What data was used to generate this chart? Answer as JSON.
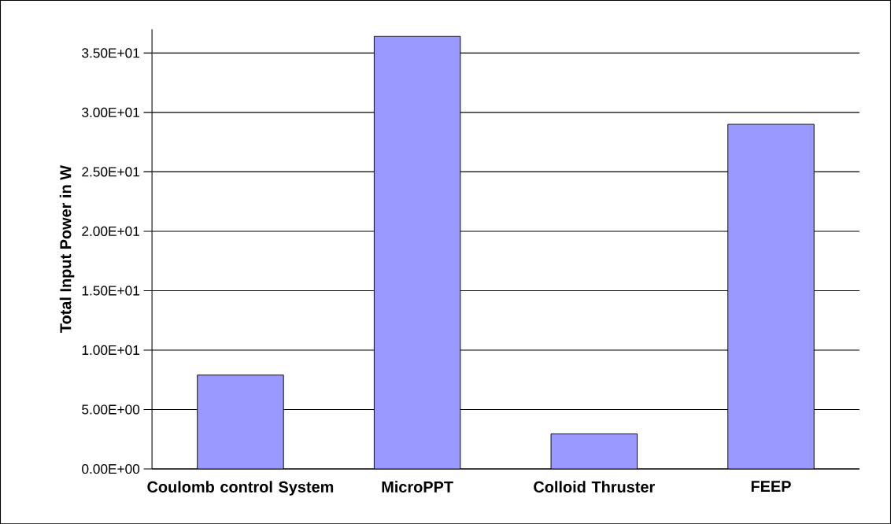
{
  "chart_data": {
    "type": "bar",
    "ylabel": "Total Input Power in W",
    "categories": [
      "Coulomb control System",
      "MicroPPT",
      "Colloid Thruster",
      "FEEP"
    ],
    "values": [
      7.9,
      36.4,
      2.95,
      29.0
    ],
    "color": "#9999ff",
    "ylim": [
      0,
      37
    ],
    "yticks": [
      {
        "value": 0,
        "label": "0.00E+00"
      },
      {
        "value": 5,
        "label": "5.00E+00"
      },
      {
        "value": 10,
        "label": "1.00E+01"
      },
      {
        "value": 15,
        "label": "1.50E+01"
      },
      {
        "value": 20,
        "label": "2.00E+01"
      },
      {
        "value": 25,
        "label": "2.50E+01"
      },
      {
        "value": 30,
        "label": "3.00E+01"
      },
      {
        "value": 35,
        "label": "3.50E+01"
      }
    ],
    "grid": "y"
  }
}
